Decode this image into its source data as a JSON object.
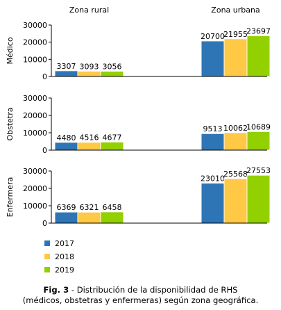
{
  "chart_data": {
    "type": "bar",
    "columns": [
      "Zona rural",
      "Zona urbana"
    ],
    "series": [
      {
        "name": "2017",
        "color": "#2e75b6"
      },
      {
        "name": "2018",
        "color": "#ffc845"
      },
      {
        "name": "2019",
        "color": "#92d000"
      }
    ],
    "panels": [
      {
        "label": "Médico",
        "ylim": [
          0,
          30000
        ],
        "ticks": [
          "0",
          "10000",
          "20000",
          "30000"
        ],
        "values": [
          [
            3307,
            3093,
            3056
          ],
          [
            20700,
            21955,
            23697
          ]
        ]
      },
      {
        "label": "Obstetra",
        "ylim": [
          0,
          30000
        ],
        "ticks": [
          "0",
          "10000",
          "20000",
          "30000"
        ],
        "values": [
          [
            4480,
            4516,
            4677
          ],
          [
            9513,
            10062,
            10689
          ]
        ]
      },
      {
        "label": "Enfermera",
        "ylim": [
          0,
          30000
        ],
        "ticks": [
          "0",
          "10000",
          "20000",
          "30000"
        ],
        "values": [
          [
            6369,
            6321,
            6458
          ],
          [
            23010,
            25568,
            27553
          ]
        ]
      }
    ],
    "grid": false,
    "legend": "bottom-left"
  },
  "caption": {
    "label": "Fig. 3",
    "line1": " - Distribución de la disponibilidad de RHS",
    "line2": "(médicos, obstetras y enfermeras) según zona geográfica."
  }
}
